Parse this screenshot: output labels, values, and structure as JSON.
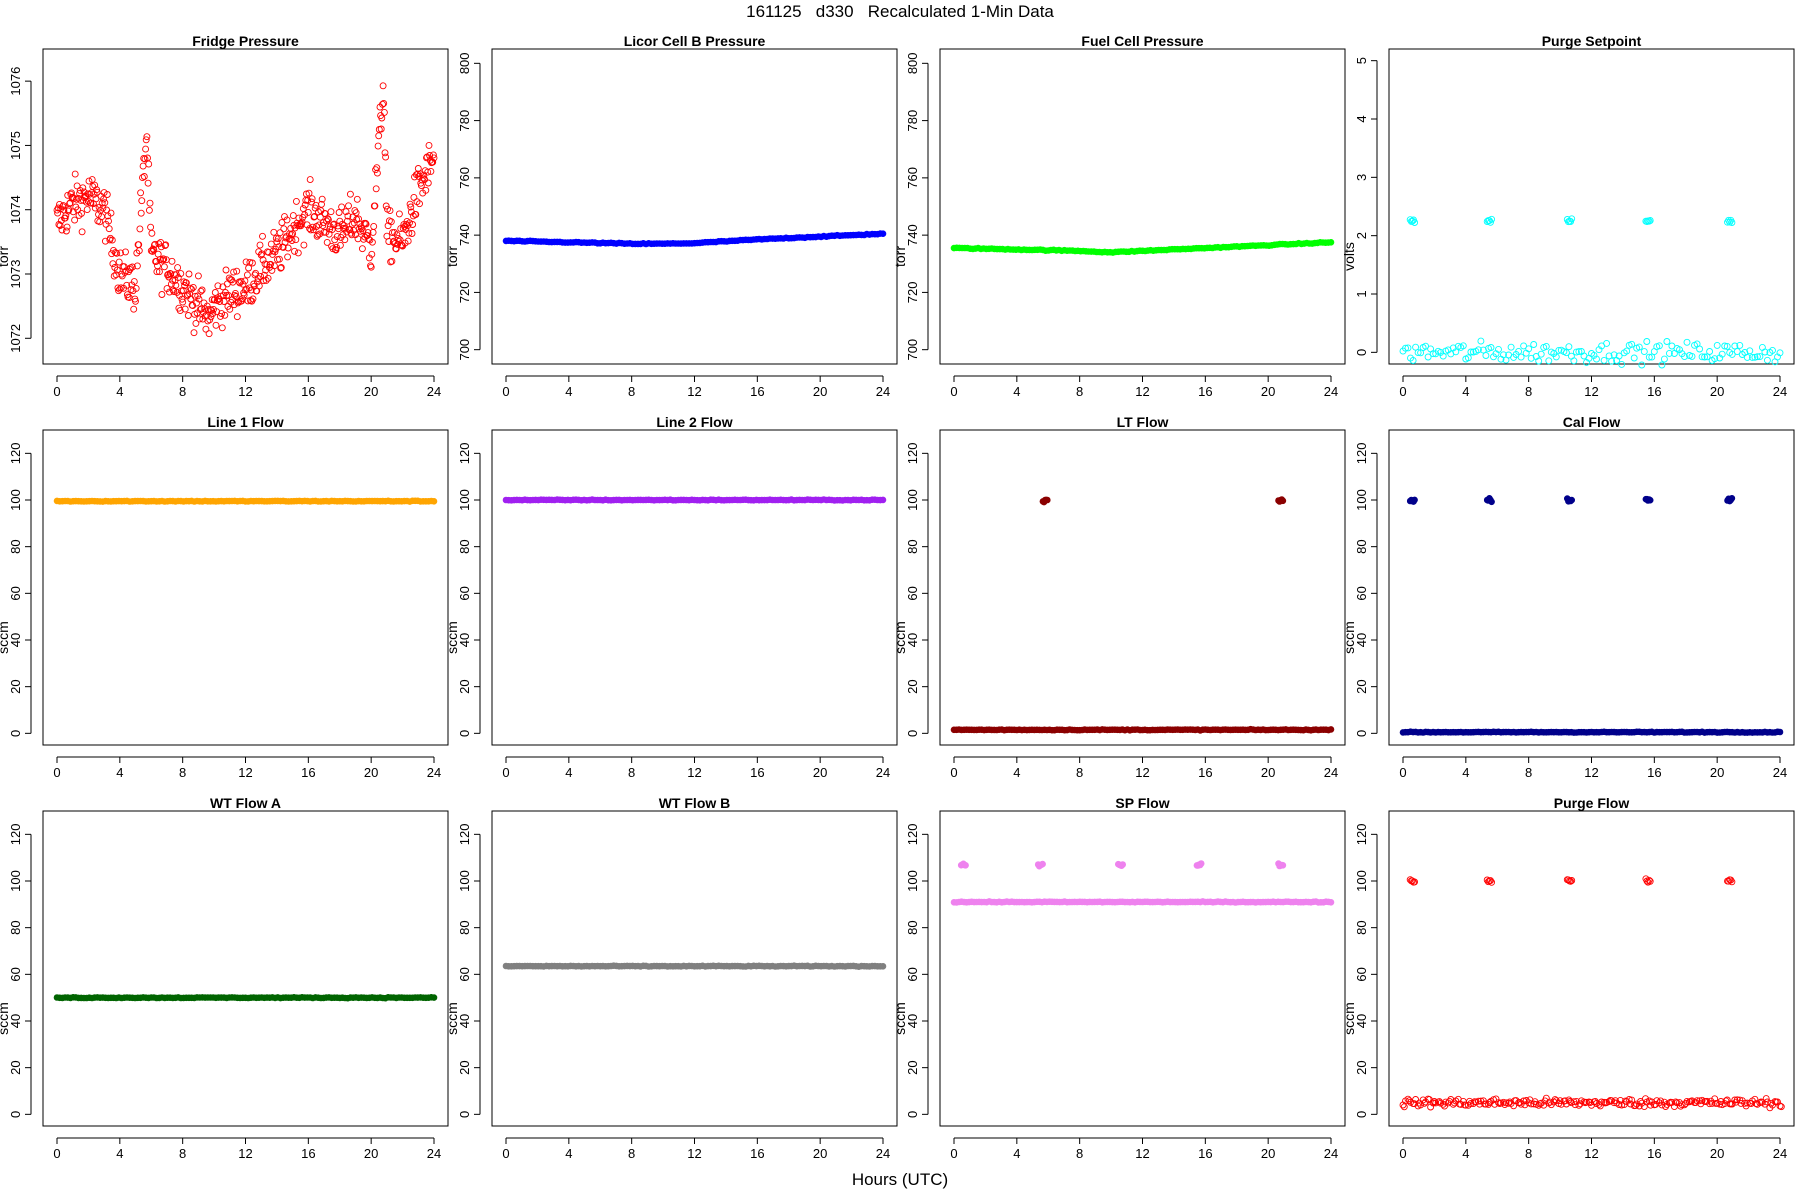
{
  "figure": {
    "title": "161125   d330   Recalculated 1-Min Data",
    "xlabel": "Hours (UTC)"
  },
  "chart_data": [
    {
      "type": "scatter",
      "title": "Fridge Pressure",
      "ylabel": "torr",
      "ylim": [
        1071.6,
        1076.5
      ],
      "yticks": [
        1072,
        1073,
        1074,
        1075,
        1076
      ],
      "xlim": [
        0,
        24
      ],
      "xticks": [
        0,
        4,
        8,
        12,
        16,
        20,
        24
      ],
      "marker": "open",
      "color": "#ff0000",
      "shape": "fridge",
      "series": [
        {
          "x": [
            0,
            1,
            2,
            3,
            4,
            5,
            5.7,
            6,
            7,
            8,
            9,
            9.7,
            10,
            11,
            12,
            13,
            14,
            15,
            16,
            17,
            18,
            19,
            20,
            20.8,
            21,
            22,
            23,
            24
          ],
          "y": [
            1073.8,
            1074.1,
            1074.2,
            1074.0,
            1073.0,
            1072.8,
            1075.2,
            1073.3,
            1073.1,
            1072.8,
            1072.5,
            1072.3,
            1072.5,
            1072.7,
            1072.8,
            1073.1,
            1073.3,
            1073.7,
            1074.0,
            1073.8,
            1073.6,
            1073.9,
            1073.4,
            1076.0,
            1073.6,
            1073.5,
            1074.3,
            1074.8
          ]
        }
      ]
    },
    {
      "type": "scatter",
      "title": "Licor Cell B Pressure",
      "ylabel": "torr",
      "ylim": [
        695,
        805
      ],
      "yticks": [
        700,
        720,
        740,
        760,
        780,
        800
      ],
      "xlim": [
        0,
        24
      ],
      "xticks": [
        0,
        4,
        8,
        12,
        16,
        20,
        24
      ],
      "marker": "filled",
      "color": "#0000ff",
      "shape": "line",
      "series": [
        {
          "x": [
            0,
            4,
            8,
            10,
            12,
            16,
            20,
            24
          ],
          "y": [
            738,
            737.5,
            737,
            737,
            737.2,
            738.5,
            739.5,
            740.5
          ]
        }
      ]
    },
    {
      "type": "scatter",
      "title": "Fuel Cell Pressure",
      "ylabel": "torr",
      "ylim": [
        695,
        805
      ],
      "yticks": [
        700,
        720,
        740,
        760,
        780,
        800
      ],
      "xlim": [
        0,
        24
      ],
      "xticks": [
        0,
        4,
        8,
        12,
        16,
        20,
        24
      ],
      "marker": "filled",
      "color": "#00ff00",
      "shape": "line",
      "series": [
        {
          "x": [
            0,
            4,
            8,
            10,
            12,
            16,
            20,
            24
          ],
          "y": [
            735.5,
            735,
            734.5,
            734,
            734.5,
            735.5,
            736.5,
            737.5
          ]
        }
      ]
    },
    {
      "type": "scatter",
      "title": "Purge Setpoint",
      "ylabel": "volts",
      "ylim": [
        -0.2,
        5.2
      ],
      "yticks": [
        0,
        1,
        2,
        3,
        4,
        5
      ],
      "xlim": [
        0,
        24
      ],
      "xticks": [
        0,
        4,
        8,
        12,
        16,
        20,
        24
      ],
      "marker": "open",
      "color": "#00ffff",
      "shape": "baseline",
      "baseline": 0,
      "spike_value": 2.25,
      "spikes": [
        0.6,
        5.5,
        10.6,
        15.6,
        20.8
      ]
    },
    {
      "type": "scatter",
      "title": "Line 1 Flow",
      "ylabel": "sccm",
      "ylim": [
        -5,
        130
      ],
      "yticks": [
        0,
        20,
        40,
        60,
        80,
        100,
        120
      ],
      "xlim": [
        0,
        24
      ],
      "xticks": [
        0,
        4,
        8,
        12,
        16,
        20,
        24
      ],
      "marker": "filled",
      "color": "#ffa500",
      "shape": "line",
      "series": [
        {
          "x": [
            0,
            24
          ],
          "y": [
            99.5,
            99.5
          ]
        }
      ]
    },
    {
      "type": "scatter",
      "title": "Line 2 Flow",
      "ylabel": "sccm",
      "ylim": [
        -5,
        130
      ],
      "yticks": [
        0,
        20,
        40,
        60,
        80,
        100,
        120
      ],
      "xlim": [
        0,
        24
      ],
      "xticks": [
        0,
        4,
        8,
        12,
        16,
        20,
        24
      ],
      "marker": "filled",
      "color": "#a020f0",
      "shape": "line",
      "series": [
        {
          "x": [
            0,
            24
          ],
          "y": [
            100,
            100
          ]
        }
      ]
    },
    {
      "type": "scatter",
      "title": "LT Flow",
      "ylabel": "sccm",
      "ylim": [
        -5,
        130
      ],
      "yticks": [
        0,
        20,
        40,
        60,
        80,
        100,
        120
      ],
      "xlim": [
        0,
        24
      ],
      "xticks": [
        0,
        4,
        8,
        12,
        16,
        20,
        24
      ],
      "marker": "filled",
      "color": "#8b0000",
      "shape": "baseline",
      "baseline": 1.5,
      "spike_value": 100,
      "spikes": [
        5.8,
        20.8
      ]
    },
    {
      "type": "scatter",
      "title": "Cal Flow",
      "ylabel": "sccm",
      "ylim": [
        -5,
        130
      ],
      "yticks": [
        0,
        20,
        40,
        60,
        80,
        100,
        120
      ],
      "xlim": [
        0,
        24
      ],
      "xticks": [
        0,
        4,
        8,
        12,
        16,
        20,
        24
      ],
      "marker": "filled",
      "color": "#00008b",
      "shape": "baseline",
      "baseline": 0.5,
      "spike_value": 100,
      "spikes": [
        0.6,
        5.5,
        10.6,
        15.6,
        20.8
      ]
    },
    {
      "type": "scatter",
      "title": "WT Flow A",
      "ylabel": "sccm",
      "ylim": [
        -5,
        130
      ],
      "yticks": [
        0,
        20,
        40,
        60,
        80,
        100,
        120
      ],
      "xlim": [
        0,
        24
      ],
      "xticks": [
        0,
        4,
        8,
        12,
        16,
        20,
        24
      ],
      "marker": "filled",
      "color": "#006400",
      "shape": "line",
      "series": [
        {
          "x": [
            0,
            24
          ],
          "y": [
            50,
            50
          ]
        }
      ]
    },
    {
      "type": "scatter",
      "title": "WT Flow B",
      "ylabel": "sccm",
      "ylim": [
        -5,
        130
      ],
      "yticks": [
        0,
        20,
        40,
        60,
        80,
        100,
        120
      ],
      "xlim": [
        0,
        24
      ],
      "xticks": [
        0,
        4,
        8,
        12,
        16,
        20,
        24
      ],
      "marker": "filled",
      "color": "#808080",
      "shape": "line",
      "series": [
        {
          "x": [
            0,
            24
          ],
          "y": [
            63.5,
            63.5
          ]
        }
      ]
    },
    {
      "type": "scatter",
      "title": "SP Flow",
      "ylabel": "sccm",
      "ylim": [
        -5,
        130
      ],
      "yticks": [
        0,
        20,
        40,
        60,
        80,
        100,
        120
      ],
      "xlim": [
        0,
        24
      ],
      "xticks": [
        0,
        4,
        8,
        12,
        16,
        20,
        24
      ],
      "marker": "filled",
      "color": "#ee82ee",
      "shape": "baseline",
      "baseline": 91,
      "spike_value": 107,
      "spikes": [
        0.6,
        5.5,
        10.6,
        15.6,
        20.8
      ]
    },
    {
      "type": "scatter",
      "title": "Purge Flow",
      "ylabel": "sccm",
      "ylim": [
        -5,
        130
      ],
      "yticks": [
        0,
        20,
        40,
        60,
        80,
        100,
        120
      ],
      "xlim": [
        0,
        24
      ],
      "xticks": [
        0,
        4,
        8,
        12,
        16,
        20,
        24
      ],
      "marker": "open",
      "color": "#ff0000",
      "shape": "noisy-baseline",
      "baseline": 5,
      "spike_value": 100,
      "spikes": [
        0.6,
        5.5,
        10.6,
        15.6,
        20.8
      ]
    }
  ]
}
